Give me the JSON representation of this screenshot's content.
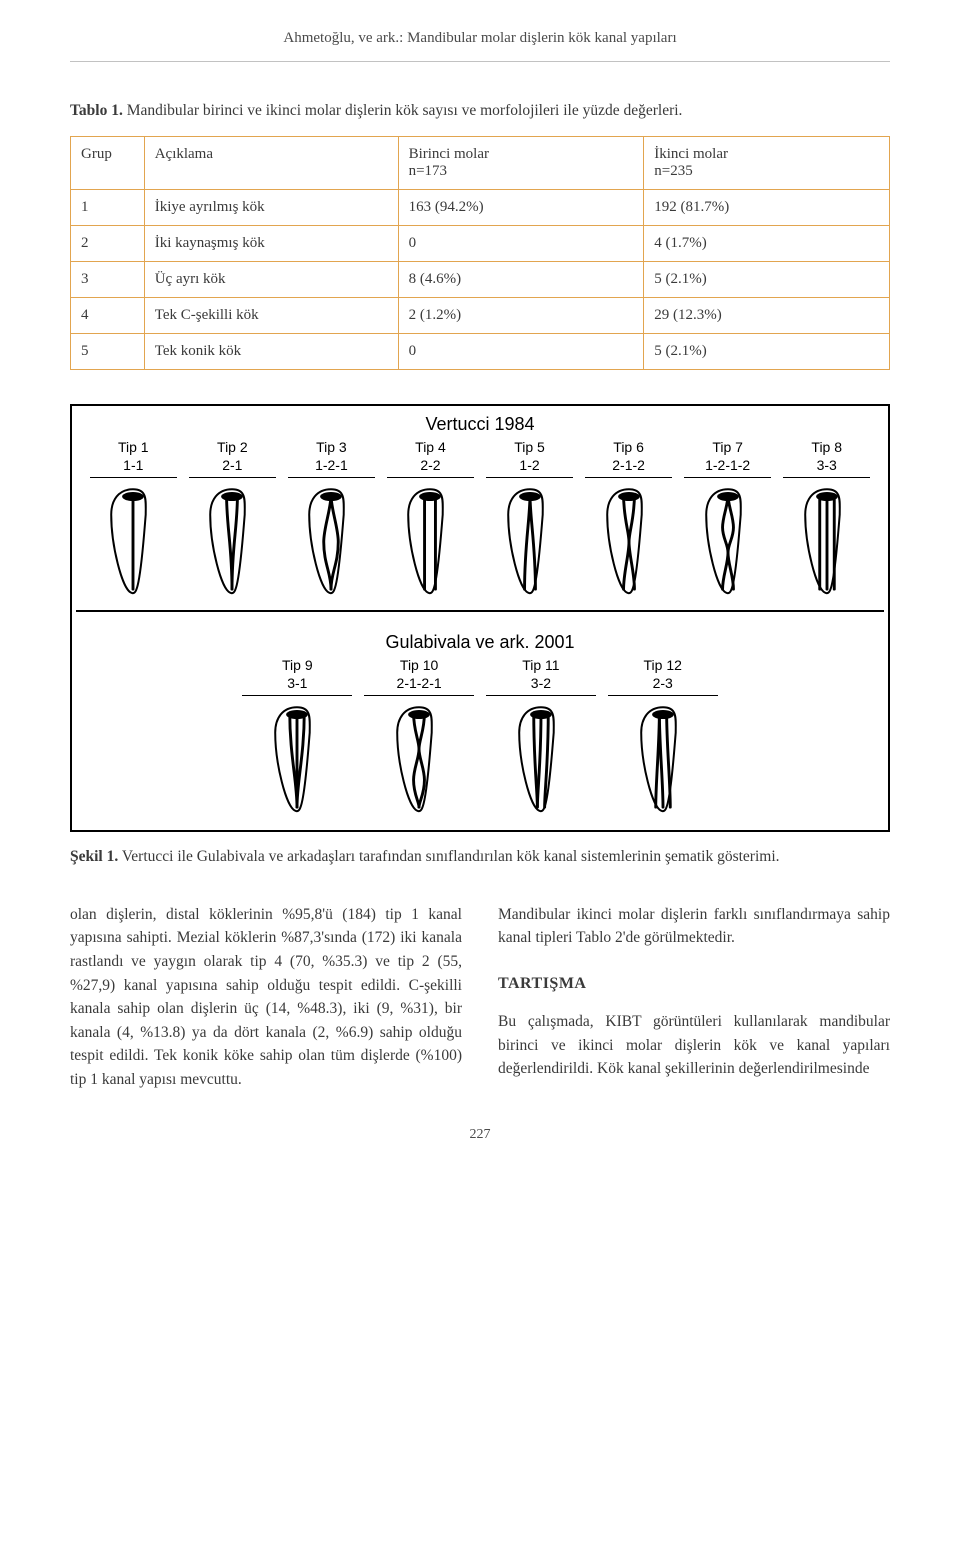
{
  "running_head": "Ahmetoğlu, ve ark.: Mandibular molar dişlerin kök kanal yapıları",
  "table1": {
    "caption_label": "Tablo 1.",
    "caption_text": " Mandibular birinci ve ikinci molar dişlerin kök sayısı ve morfolojileri ile yüzde değerleri.",
    "header": {
      "grup": "Grup",
      "aciklama": "Açıklama",
      "m1_line1": "Birinci molar",
      "m1_line2": "n=173",
      "m2_line1": "İkinci molar",
      "m2_line2": "n=235"
    },
    "rows": [
      {
        "g": "1",
        "a": "İkiye ayrılmış kök",
        "m1": "163 (94.2%)",
        "m2": "192 (81.7%)"
      },
      {
        "g": "2",
        "a": "İki kaynaşmış kök",
        "m1": "0",
        "m2": "4 (1.7%)"
      },
      {
        "g": "3",
        "a": "Üç ayrı kök",
        "m1": "8 (4.6%)",
        "m2": "5 (2.1%)"
      },
      {
        "g": "4",
        "a": "Tek C-şekilli kök",
        "m1": "2 (1.2%)",
        "m2": "29 (12.3%)"
      },
      {
        "g": "5",
        "a": "Tek konik kök",
        "m1": "0",
        "m2": "5 (2.1%)"
      }
    ],
    "border_color": "#e2a54f"
  },
  "figure1": {
    "title1": "Vertucci 1984",
    "title2": "Gulabivala ve ark. 2001",
    "row1": [
      {
        "tip": "Tip 1",
        "code": "1-1"
      },
      {
        "tip": "Tip 2",
        "code": "2-1"
      },
      {
        "tip": "Tip 3",
        "code": "1-2-1"
      },
      {
        "tip": "Tip 4",
        "code": "2-2"
      },
      {
        "tip": "Tip 5",
        "code": "1-2"
      },
      {
        "tip": "Tip 6",
        "code": "2-1-2"
      },
      {
        "tip": "Tip 7",
        "code": "1-2-1-2"
      },
      {
        "tip": "Tip 8",
        "code": "3-3"
      }
    ],
    "row2": [
      {
        "tip": "Tip 9",
        "code": "3-1"
      },
      {
        "tip": "Tip 10",
        "code": "2-1-2-1"
      },
      {
        "tip": "Tip 11",
        "code": "3-2"
      },
      {
        "tip": "Tip 12",
        "code": "2-3"
      }
    ],
    "caption_label": "Şekil 1.",
    "caption_text": " Vertucci ile Gulabivala ve arkadaşları tarafından sınıflandırılan kök kanal sistemlerinin şematik gösterimi."
  },
  "body": {
    "left": "olan dişlerin, distal köklerinin %95,8'ü (184) tip 1 kanal yapısına sahipti. Mezial köklerin %87,3'sında (172) iki kanala rastlandı ve yaygın olarak tip 4 (70, %35.3) ve tip 2 (55, %27,9) kanal yapısına sahip olduğu tespit edildi. C-şekilli kanala sahip olan dişlerin üç (14, %48.3), iki (9, %31), bir kanala (4, %13.8) ya da dört kanala (2, %6.9) sahip olduğu tespit edildi. Tek konik köke sahip olan tüm dişlerde (%100) tip 1 kanal yapısı mevcuttu.",
    "right_p1": "Mandibular ikinci molar dişlerin farklı sınıflandırmaya sahip kanal tipleri Tablo 2'de görülmektedir.",
    "section": "TARTIŞMA",
    "right_p2": "Bu çalışmada, KIBT görüntüleri kullanılarak mandibular birinci ve ikinci molar dişlerin kök ve kanal yapıları değerlendirildi. Kök kanal şekillerinin değerlendirilmesinde"
  },
  "page_number": "227"
}
